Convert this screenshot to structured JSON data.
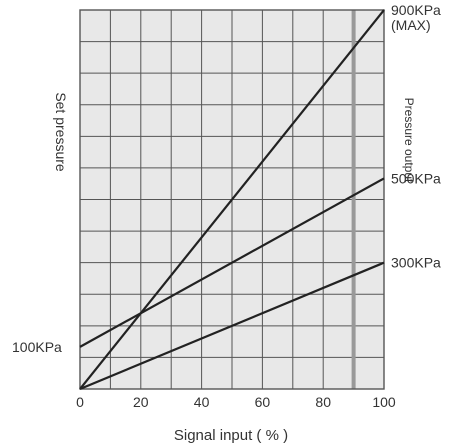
{
  "chart_data": {
    "type": "line",
    "title": "",
    "xlabel": "Signal input ( % )",
    "ylabel_left": "Set pressure",
    "ylabel_right": "Pressure output",
    "xlim": [
      0,
      100
    ],
    "ylim": [
      0,
      900
    ],
    "x_ticks": [
      "0",
      "20",
      "40",
      "60",
      "80",
      "100"
    ],
    "grid": true,
    "series": [
      {
        "name": "900KPa",
        "x": [
          0,
          100
        ],
        "y": [
          0,
          900
        ]
      },
      {
        "name": "500KPa",
        "x": [
          0,
          100
        ],
        "y": [
          100,
          500
        ]
      },
      {
        "name": "300KPa",
        "x": [
          0,
          100
        ],
        "y": [
          0,
          300
        ]
      }
    ],
    "annotations": {
      "left": [
        {
          "text": "100KPa",
          "y": 100
        }
      ],
      "right": [
        {
          "text": "900KPa",
          "sub": "(MAX)",
          "y": 900
        },
        {
          "text": "500KPa",
          "y": 500
        },
        {
          "text": "300KPa",
          "y": 300
        }
      ]
    },
    "colors": {
      "background": "#e8e8e8",
      "grid": "#555555",
      "line": "#222222",
      "highlight": "#999999"
    }
  }
}
